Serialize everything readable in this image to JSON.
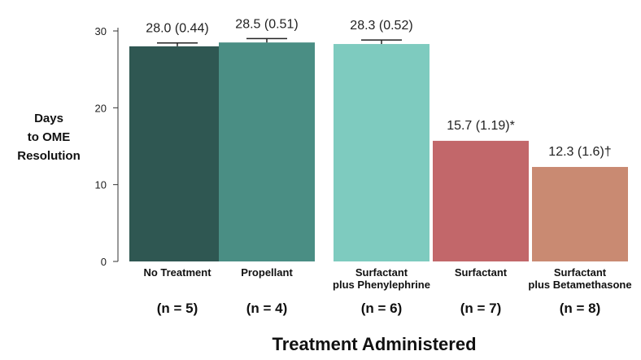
{
  "chart_data": {
    "type": "bar",
    "categories": [
      [
        "No Treatment"
      ],
      [
        "Propellant"
      ],
      [
        "Surfactant",
        "plus Phenylephrine"
      ],
      [
        "Surfactant"
      ],
      [
        "Surfactant",
        "plus Betamethasone"
      ]
    ],
    "sample_sizes": [
      "(n = 5)",
      "(n = 4)",
      "(n = 6)",
      "(n = 7)",
      "(n = 8)"
    ],
    "values": [
      28.0,
      28.5,
      28.3,
      15.7,
      12.3
    ],
    "errors": [
      0.44,
      0.51,
      0.52,
      1.19,
      1.6
    ],
    "data_labels": [
      "28.0 (0.44)",
      "28.5 (0.51)",
      "28.3 (0.52)",
      "15.7 (1.19)*",
      "12.3 (1.6)†"
    ],
    "colors": [
      "#2f5752",
      "#4a8e84",
      "#7ecbbf",
      "#c2676a",
      "#c98a72"
    ],
    "ylabel": [
      "Days",
      "to OME",
      "Resolution"
    ],
    "xlabel": "Treatment Administered",
    "ylim": [
      0,
      30
    ],
    "yticks": [
      0,
      10,
      20,
      30
    ],
    "grid": false,
    "legend": "none"
  }
}
